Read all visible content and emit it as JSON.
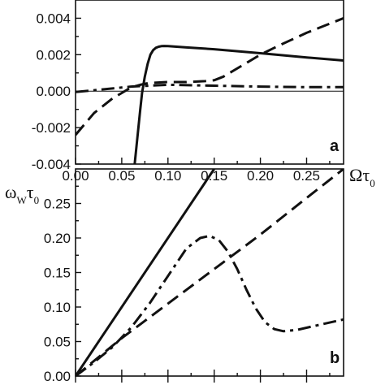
{
  "chart_data": [
    {
      "panel": "a",
      "type": "line",
      "xlabel": "Ωτ0",
      "ylabel": "",
      "xlim": [
        0.0,
        0.29
      ],
      "ylim": [
        -0.004,
        0.005
      ],
      "x_ticks": [
        "0.00",
        "0.05",
        "0.10",
        "0.15",
        "0.20",
        "0.25"
      ],
      "y_ticks": [
        "-0.004",
        "-0.002",
        "0.000",
        "0.002",
        "0.004"
      ],
      "zero_line": true,
      "series": [
        {
          "style": "solid",
          "x": [
            0.064,
            0.066,
            0.068,
            0.07,
            0.072,
            0.075,
            0.078,
            0.081,
            0.084,
            0.087,
            0.09,
            0.093,
            0.096,
            0.1,
            0.12,
            0.15,
            0.2,
            0.25,
            0.29
          ],
          "y": [
            -0.004,
            -0.003,
            -0.002,
            -0.001,
            -0.0001,
            0.0008,
            0.0015,
            0.002,
            0.00225,
            0.00238,
            0.00244,
            0.00247,
            0.00248,
            0.00247,
            0.0024,
            0.0023,
            0.00208,
            0.00185,
            0.00168
          ]
        },
        {
          "style": "dashed",
          "x": [
            0.0,
            0.02,
            0.04,
            0.05,
            0.06,
            0.07,
            0.08,
            0.1,
            0.12,
            0.14,
            0.15,
            0.16,
            0.18,
            0.2,
            0.22,
            0.25,
            0.27,
            0.29
          ],
          "y": [
            -0.0024,
            -0.0012,
            -0.0004,
            -0.0001,
            0.0002,
            0.00035,
            0.00045,
            0.0005,
            0.0005,
            0.00055,
            0.0006,
            0.0008,
            0.0014,
            0.002,
            0.0025,
            0.0032,
            0.0036,
            0.004
          ]
        },
        {
          "style": "dashdot",
          "x": [
            0.0,
            0.02,
            0.04,
            0.06,
            0.08,
            0.1,
            0.15,
            0.2,
            0.25,
            0.29
          ],
          "y": [
            -5e-05,
            5e-05,
            0.00015,
            0.00025,
            0.0003,
            0.00035,
            0.0003,
            0.00025,
            0.00022,
            0.00022
          ]
        }
      ]
    },
    {
      "panel": "b",
      "type": "line",
      "ylabel": "ωWτ0",
      "xlim": [
        0.0,
        0.29
      ],
      "ylim": [
        0.0,
        0.3
      ],
      "x_ticks": [],
      "y_ticks": [
        "0.00",
        "0.05",
        "0.10",
        "0.15",
        "0.20",
        "0.25"
      ],
      "series": [
        {
          "style": "solid",
          "x": [
            0.0,
            0.15
          ],
          "y": [
            0.0,
            0.3
          ]
        },
        {
          "style": "dashed",
          "x": [
            0.0,
            0.05,
            0.1,
            0.15,
            0.2,
            0.25,
            0.29
          ],
          "y": [
            0.0,
            0.055,
            0.105,
            0.155,
            0.205,
            0.258,
            0.3
          ]
        },
        {
          "style": "dashdot",
          "x": [
            0.0,
            0.02,
            0.04,
            0.06,
            0.08,
            0.1,
            0.12,
            0.135,
            0.145,
            0.155,
            0.165,
            0.175,
            0.185,
            0.195,
            0.205,
            0.215,
            0.225,
            0.24,
            0.26,
            0.29
          ],
          "y": [
            0.0,
            0.02,
            0.042,
            0.07,
            0.105,
            0.145,
            0.185,
            0.2,
            0.203,
            0.197,
            0.18,
            0.155,
            0.125,
            0.098,
            0.078,
            0.068,
            0.065,
            0.067,
            0.073,
            0.082
          ]
        }
      ]
    }
  ]
}
